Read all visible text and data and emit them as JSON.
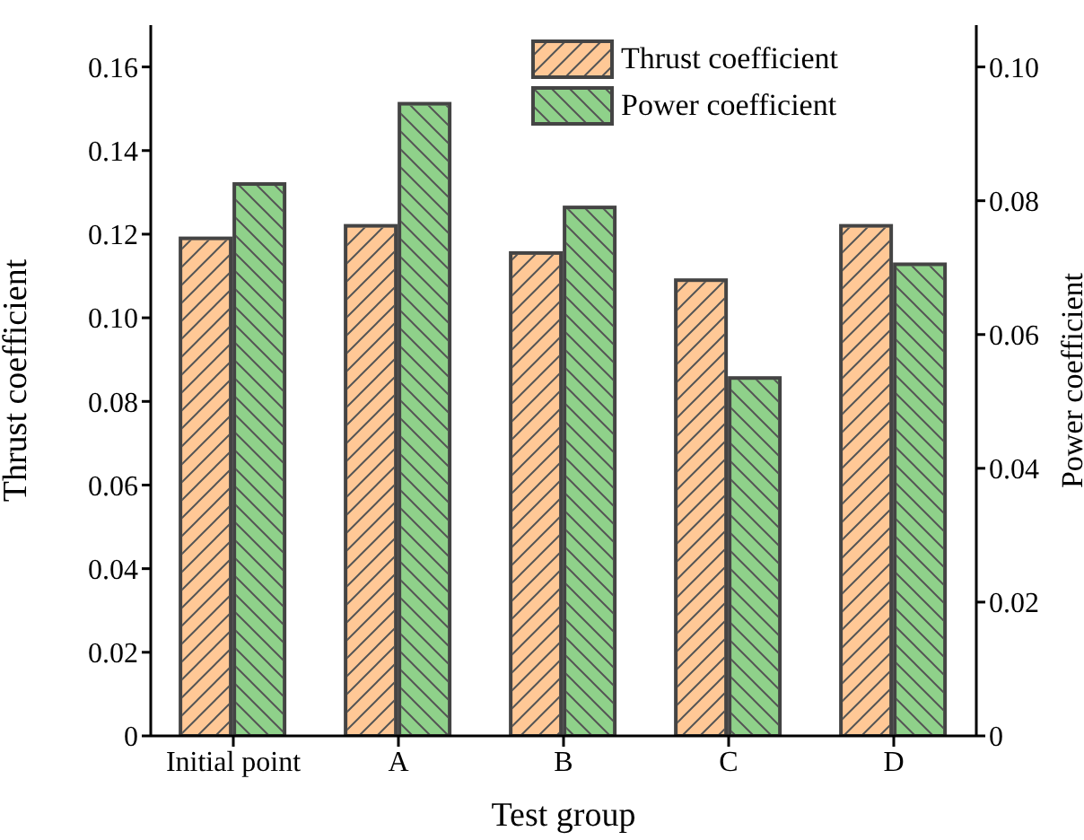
{
  "chart_data": {
    "type": "bar",
    "xlabel": "Test group",
    "ylabel": "Thrust coefficient",
    "y2label": "Power coefficient",
    "categories": [
      "Initial point",
      "A",
      "B",
      "C",
      "D"
    ],
    "series": [
      {
        "name": "Thrust coefficient",
        "color": "#ffc896",
        "values": [
          0.119,
          0.122,
          0.1155,
          0.109,
          0.122
        ]
      },
      {
        "name": "Power coefficient",
        "color": "#8fd18a",
        "axis": "y2",
        "values": [
          0.0825,
          0.0945,
          0.079,
          0.0535,
          0.0705
        ]
      }
    ],
    "ylim": [
      0,
      0.17
    ],
    "yticks": [
      0,
      0.02,
      0.04,
      0.06,
      0.08,
      {
        "value": 0.1,
        "label": "0.10"
      },
      0.12,
      0.14,
      0.16
    ],
    "y2lim": [
      0,
      0.10625
    ],
    "y2ticks": [
      0,
      0.02,
      0.04,
      0.06,
      0.08,
      {
        "value": 0.1,
        "label": "0.10"
      }
    ],
    "legend": "top right",
    "grid": false
  }
}
